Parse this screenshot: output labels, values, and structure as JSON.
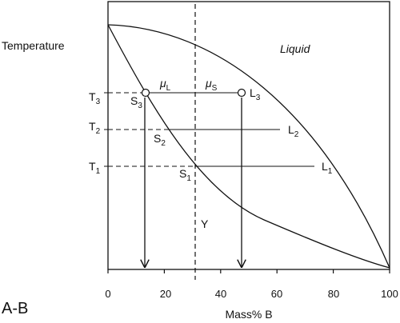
{
  "figure_label": "A-B",
  "y_axis_label": "Temperature",
  "x_axis_label": "Mass% B",
  "region_label": "Liquid",
  "composition_marker": "Y",
  "x_ticks": [
    "0",
    "20",
    "40",
    "60",
    "80",
    "100"
  ],
  "temperatures": [
    {
      "id": "T3",
      "base": "T",
      "sub": "3"
    },
    {
      "id": "T2",
      "base": "T",
      "sub": "2"
    },
    {
      "id": "T1",
      "base": "T",
      "sub": "1"
    }
  ],
  "solidus_points": [
    {
      "id": "S3",
      "base": "S",
      "sub": "3"
    },
    {
      "id": "S2",
      "base": "S",
      "sub": "2"
    },
    {
      "id": "S1",
      "base": "S",
      "sub": "1"
    }
  ],
  "liquidus_points": [
    {
      "id": "L3",
      "base": "L",
      "sub": "3"
    },
    {
      "id": "L2",
      "base": "L",
      "sub": "2"
    },
    {
      "id": "L1",
      "base": "L",
      "sub": "1"
    }
  ],
  "chemical_potentials": [
    {
      "id": "muL",
      "base": "μ",
      "sub": "L"
    },
    {
      "id": "muS",
      "base": "μ",
      "sub": "S"
    }
  ]
}
